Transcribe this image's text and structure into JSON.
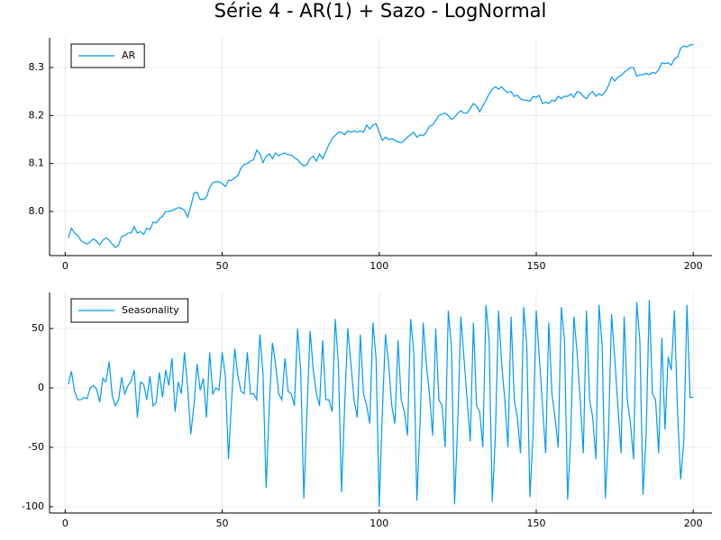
{
  "title": "Série 4 - AR(1) + Sazo - LogNormal",
  "chart_data": [
    {
      "type": "line",
      "grid": true,
      "legend": "top-left",
      "xlim": [
        -4.97,
        205.97
      ],
      "xticks": [
        0,
        50,
        100,
        150,
        200
      ],
      "ylim": [
        7.908,
        8.362
      ],
      "yticks": [
        {
          "value": 8,
          "label": "8.0"
        },
        8.1,
        8.2,
        8.3
      ],
      "x": [
        1,
        2,
        3,
        4,
        5,
        6,
        7,
        8,
        9,
        10,
        11,
        12,
        13,
        14,
        15,
        16,
        17,
        18,
        19,
        20,
        21,
        22,
        23,
        24,
        25,
        26,
        27,
        28,
        29,
        30,
        31,
        32,
        33,
        34,
        35,
        36,
        37,
        38,
        39,
        40,
        41,
        42,
        43,
        44,
        45,
        46,
        47,
        48,
        49,
        50,
        51,
        52,
        53,
        54,
        55,
        56,
        57,
        58,
        59,
        60,
        61,
        62,
        63,
        64,
        65,
        66,
        67,
        68,
        69,
        70,
        71,
        72,
        73,
        74,
        75,
        76,
        77,
        78,
        79,
        80,
        81,
        82,
        83,
        84,
        85,
        86,
        87,
        88,
        89,
        90,
        91,
        92,
        93,
        94,
        95,
        96,
        97,
        98,
        99,
        100,
        101,
        102,
        103,
        104,
        105,
        106,
        107,
        108,
        109,
        110,
        111,
        112,
        113,
        114,
        115,
        116,
        117,
        118,
        119,
        120,
        121,
        122,
        123,
        124,
        125,
        126,
        127,
        128,
        129,
        130,
        131,
        132,
        133,
        134,
        135,
        136,
        137,
        138,
        139,
        140,
        141,
        142,
        143,
        144,
        145,
        146,
        147,
        148,
        149,
        150,
        151,
        152,
        153,
        154,
        155,
        156,
        157,
        158,
        159,
        160,
        161,
        162,
        163,
        164,
        165,
        166,
        167,
        168,
        169,
        170,
        171,
        172,
        173,
        174,
        175,
        176,
        177,
        178,
        179,
        180,
        181,
        182,
        183,
        184,
        185,
        186,
        187,
        188,
        189,
        190,
        191,
        192,
        193,
        194,
        195,
        196,
        197,
        198,
        199,
        200
      ],
      "series": [
        {
          "name": "AR",
          "color": "#009af9",
          "values": [
            7.945,
            7.965,
            7.955,
            7.95,
            7.94,
            7.935,
            7.932,
            7.937,
            7.943,
            7.938,
            7.93,
            7.94,
            7.945,
            7.94,
            7.932,
            7.925,
            7.93,
            7.948,
            7.95,
            7.955,
            7.955,
            7.968,
            7.955,
            7.958,
            7.952,
            7.965,
            7.962,
            7.978,
            7.976,
            7.985,
            7.99,
            8.0,
            8.0,
            8.002,
            8.005,
            8.008,
            8.007,
            8.002,
            7.988,
            8.01,
            8.038,
            8.04,
            8.025,
            8.025,
            8.03,
            8.05,
            8.06,
            8.062,
            8.062,
            8.058,
            8.052,
            8.065,
            8.065,
            8.07,
            8.075,
            8.09,
            8.098,
            8.1,
            8.105,
            8.108,
            8.128,
            8.12,
            8.102,
            8.115,
            8.12,
            8.11,
            8.122,
            8.116,
            8.12,
            8.122,
            8.118,
            8.118,
            8.112,
            8.108,
            8.1,
            8.095,
            8.098,
            8.11,
            8.115,
            8.105,
            8.12,
            8.11,
            8.125,
            8.14,
            8.152,
            8.158,
            8.165,
            8.165,
            8.16,
            8.168,
            8.165,
            8.168,
            8.165,
            8.168,
            8.165,
            8.18,
            8.172,
            8.18,
            8.183,
            8.165,
            8.148,
            8.155,
            8.15,
            8.152,
            8.148,
            8.145,
            8.143,
            8.148,
            8.155,
            8.16,
            8.165,
            8.155,
            8.16,
            8.158,
            8.165,
            8.178,
            8.18,
            8.19,
            8.2,
            8.203,
            8.205,
            8.2,
            8.192,
            8.196,
            8.205,
            8.21,
            8.205,
            8.205,
            8.215,
            8.225,
            8.22,
            8.208,
            8.22,
            8.232,
            8.245,
            8.255,
            8.26,
            8.255,
            8.26,
            8.252,
            8.248,
            8.25,
            8.24,
            8.242,
            8.235,
            8.232,
            8.232,
            8.23,
            8.24,
            8.238,
            8.242,
            8.225,
            8.228,
            8.225,
            8.232,
            8.23,
            8.24,
            8.235,
            8.24,
            8.24,
            8.245,
            8.238,
            8.25,
            8.248,
            8.24,
            8.235,
            8.245,
            8.25,
            8.24,
            8.245,
            8.242,
            8.25,
            8.262,
            8.28,
            8.272,
            8.28,
            8.283,
            8.29,
            8.295,
            8.3,
            8.3,
            8.282,
            8.285,
            8.285,
            8.288,
            8.285,
            8.29,
            8.288,
            8.295,
            8.31,
            8.308,
            8.31,
            8.305,
            8.318,
            8.322,
            8.34,
            8.345,
            8.343,
            8.347,
            8.348
          ]
        }
      ]
    },
    {
      "type": "line",
      "grid": true,
      "legend": "top-left",
      "xlim": [
        -4.97,
        205.97
      ],
      "xticks": [
        0,
        50,
        100,
        150,
        200
      ],
      "ylim": [
        -105.3,
        80.3
      ],
      "yticks": [
        -100,
        -50,
        0,
        50
      ],
      "x": [
        1,
        2,
        3,
        4,
        5,
        6,
        7,
        8,
        9,
        10,
        11,
        12,
        13,
        14,
        15,
        16,
        17,
        18,
        19,
        20,
        21,
        22,
        23,
        24,
        25,
        26,
        27,
        28,
        29,
        30,
        31,
        32,
        33,
        34,
        35,
        36,
        37,
        38,
        39,
        40,
        41,
        42,
        43,
        44,
        45,
        46,
        47,
        48,
        49,
        50,
        51,
        52,
        53,
        54,
        55,
        56,
        57,
        58,
        59,
        60,
        61,
        62,
        63,
        64,
        65,
        66,
        67,
        68,
        69,
        70,
        71,
        72,
        73,
        74,
        75,
        76,
        77,
        78,
        79,
        80,
        81,
        82,
        83,
        84,
        85,
        86,
        87,
        88,
        89,
        90,
        91,
        92,
        93,
        94,
        95,
        96,
        97,
        98,
        99,
        100,
        101,
        102,
        103,
        104,
        105,
        106,
        107,
        108,
        109,
        110,
        111,
        112,
        113,
        114,
        115,
        116,
        117,
        118,
        119,
        120,
        121,
        122,
        123,
        124,
        125,
        126,
        127,
        128,
        129,
        130,
        131,
        132,
        133,
        134,
        135,
        136,
        137,
        138,
        139,
        140,
        141,
        142,
        143,
        144,
        145,
        146,
        147,
        148,
        149,
        150,
        151,
        152,
        153,
        154,
        155,
        156,
        157,
        158,
        159,
        160,
        161,
        162,
        163,
        164,
        165,
        166,
        167,
        168,
        169,
        170,
        171,
        172,
        173,
        174,
        175,
        176,
        177,
        178,
        179,
        180,
        181,
        182,
        183,
        184,
        185,
        186,
        187,
        188,
        189,
        190,
        191,
        192,
        193,
        194,
        195,
        196,
        197,
        198,
        199,
        200
      ],
      "series": [
        {
          "name": "Seasonality",
          "color": "#009af9",
          "values": [
            3,
            14,
            -3,
            -10,
            -10,
            -8,
            -9,
            0,
            2,
            -1,
            -12,
            8,
            5,
            22,
            -7,
            -15,
            -10,
            9,
            -5,
            2,
            6,
            15,
            -25,
            5,
            3,
            -10,
            10,
            -15,
            -12,
            13,
            -8,
            15,
            2,
            25,
            -20,
            5,
            -5,
            30,
            0,
            -39,
            -15,
            20,
            -2,
            8,
            -25,
            30,
            -5,
            0,
            -2,
            30,
            10,
            -60,
            -10,
            33,
            10,
            -3,
            -5,
            30,
            -5,
            -5,
            -10,
            45,
            12,
            -84,
            -15,
            38,
            20,
            -5,
            -10,
            25,
            -3,
            -5,
            -15,
            50,
            15,
            -93,
            -20,
            48,
            15,
            -5,
            -15,
            40,
            -10,
            -10,
            -20,
            58,
            20,
            -88,
            -15,
            50,
            20,
            -10,
            -25,
            45,
            -5,
            -15,
            -30,
            55,
            25,
            -100,
            -20,
            45,
            20,
            -15,
            -30,
            40,
            -10,
            -20,
            -40,
            58,
            30,
            -95,
            -30,
            55,
            20,
            -5,
            -40,
            50,
            -10,
            -15,
            -50,
            65,
            35,
            -98,
            -30,
            60,
            25,
            -10,
            -45,
            55,
            -15,
            -20,
            -50,
            70,
            40,
            -96,
            -40,
            65,
            20,
            -10,
            -50,
            60,
            -10,
            -25,
            -55,
            68,
            35,
            -92,
            -40,
            65,
            25,
            -15,
            -55,
            55,
            -5,
            -25,
            -50,
            68,
            40,
            -94,
            -40,
            60,
            30,
            -10,
            -55,
            65,
            -10,
            -25,
            -60,
            70,
            35,
            -93,
            -40,
            62,
            25,
            -15,
            -55,
            60,
            -10,
            -30,
            -60,
            72,
            40,
            -90,
            -40,
            74,
            -5,
            -10,
            -55,
            42,
            -35,
            26,
            15,
            65,
            -20,
            -77,
            -45,
            70,
            -8,
            -8
          ]
        }
      ]
    }
  ]
}
